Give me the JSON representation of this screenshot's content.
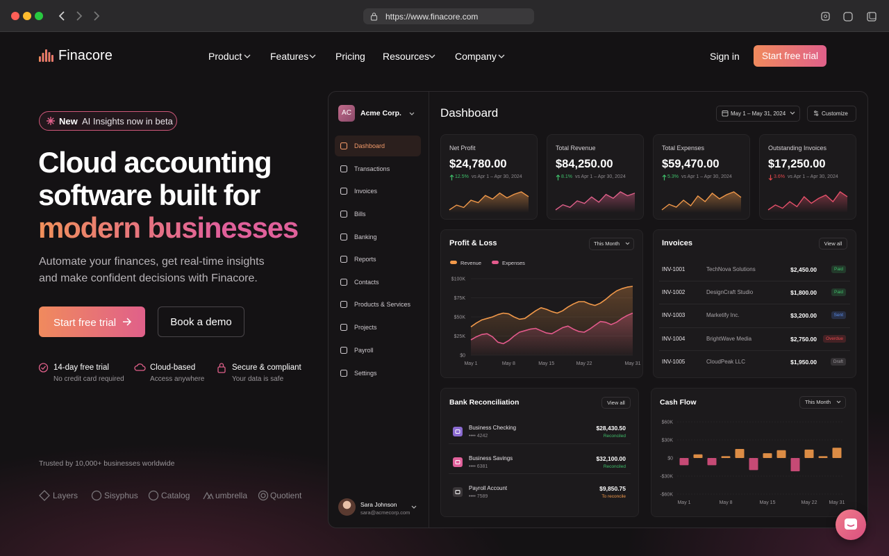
{
  "browser": {
    "url": "https://www.finacore.com"
  },
  "nav": {
    "brand": "Finacore",
    "links": [
      "Product",
      "Features",
      "Pricing",
      "Resources",
      "Company"
    ],
    "sign_in": "Sign in",
    "cta": "Start free trial"
  },
  "hero": {
    "badge": {
      "tag": "New",
      "text": "AI Insights now in beta"
    },
    "title": [
      "Cloud accounting",
      "software built for"
    ],
    "highlight": "modern businesses",
    "subtitle": "Automate your finances, get real-time insights and make confident decisions with Finacore.",
    "primary_cta": "Start free trial",
    "secondary_cta": "Book a demo",
    "features": [
      {
        "title": "14-day free trial",
        "note": "No credit card required"
      },
      {
        "title": "Cloud-based",
        "note": "Access anywhere"
      },
      {
        "title": "Secure & compliant",
        "note": "Your data is safe"
      }
    ],
    "trusted": "Trusted by 10,000+ businesses worldwide",
    "logos": [
      "Layers",
      "Sisyphus",
      "Catalog",
      "umbrella",
      "Quotient"
    ]
  },
  "app": {
    "company_initials": "AC",
    "company": "Acme Corp.",
    "menu": [
      "Dashboard",
      "Transactions",
      "Invoices",
      "Bills",
      "Banking",
      "Reports",
      "Contacts",
      "Products & Services",
      "Projects",
      "Payroll",
      "Settings"
    ],
    "user": {
      "name": "Sara Johnson",
      "email": "sara@acmecorp.com"
    },
    "title": "Dashboard",
    "date_range": "May 1 – May 31, 2024",
    "customize": "Customize",
    "kpis": [
      {
        "label": "Net Profit",
        "value": "$24,780.00",
        "change": "12.5%",
        "direction": "up",
        "period": "vs Apr 1 – Apr 30, 2024",
        "color": "#f2994a",
        "trend": [
          10,
          14,
          12,
          18,
          16,
          22,
          19,
          24,
          20,
          23,
          25,
          21
        ]
      },
      {
        "label": "Total Revenue",
        "value": "$84,250.00",
        "change": "8.1%",
        "direction": "up",
        "period": "vs Apr 1 – Apr 30, 2024",
        "color": "#e0608a",
        "trend": [
          8,
          12,
          10,
          15,
          13,
          18,
          14,
          20,
          17,
          22,
          19,
          21
        ]
      },
      {
        "label": "Total Expenses",
        "value": "$59,470.00",
        "change": "5.3%",
        "direction": "up",
        "period": "vs Apr 1 – Apr 30, 2024",
        "color": "#f2994a",
        "trend": [
          9,
          13,
          11,
          16,
          12,
          19,
          15,
          21,
          17,
          20,
          22,
          18
        ]
      },
      {
        "label": "Outstanding Invoices",
        "value": "$17,250.00",
        "change": "3.6%",
        "direction": "down",
        "period": "vs Apr 1 – Apr 30, 2024",
        "color": "#e5506a",
        "trend": [
          7,
          10,
          8,
          12,
          9,
          15,
          11,
          14,
          16,
          12,
          18,
          15
        ]
      }
    ],
    "profit_loss": {
      "type": "line",
      "title": "Profit & Loss",
      "period": "This Month",
      "categories": [
        "May 1",
        null,
        null,
        null,
        null,
        null,
        null,
        "May 8",
        null,
        null,
        null,
        null,
        null,
        null,
        "May 15",
        null,
        null,
        null,
        null,
        null,
        null,
        "May 22",
        null,
        null,
        null,
        null,
        null,
        null,
        null,
        null,
        "May 31"
      ],
      "series": [
        {
          "name": "Revenue",
          "color": "#f2994a",
          "values": [
            37000,
            42000,
            46000,
            48000,
            50000,
            53000,
            55000,
            54000,
            50000,
            47000,
            48000,
            53000,
            58000,
            62000,
            60000,
            57000,
            55000,
            58000,
            63000,
            67000,
            70000,
            70000,
            67000,
            65000,
            68000,
            73000,
            79000,
            84000,
            87000,
            89000,
            90000
          ]
        },
        {
          "name": "Expenses",
          "color": "#e45a8c",
          "values": [
            20000,
            24000,
            27000,
            28000,
            24000,
            17000,
            15000,
            19000,
            25000,
            30000,
            32000,
            34000,
            35000,
            32000,
            29000,
            28000,
            32000,
            36000,
            38000,
            34000,
            31000,
            30000,
            34000,
            39000,
            44000,
            43000,
            40000,
            43000,
            48000,
            52000,
            55000
          ]
        }
      ],
      "ylim": [
        0,
        100000
      ],
      "yticks": [
        {
          "value": 0,
          "label": "$0"
        },
        {
          "value": 25000,
          "label": "$25K"
        },
        {
          "value": 50000,
          "label": "$50K"
        },
        {
          "value": 75000,
          "label": "$75K"
        },
        {
          "value": 100000,
          "label": "$100K"
        }
      ],
      "grid": true
    },
    "invoices": {
      "title": "Invoices",
      "view_all": "View all",
      "rows": [
        {
          "id": "INV-1001",
          "client": "TechNova Solutions",
          "amount": "$2,450.00",
          "status": "Paid",
          "status_color": "#3fbf6a"
        },
        {
          "id": "INV-1002",
          "client": "DesignCraft Studio",
          "amount": "$1,800.00",
          "status": "Paid",
          "status_color": "#3fbf6a"
        },
        {
          "id": "INV-1003",
          "client": "Marketify Inc.",
          "amount": "$3,200.00",
          "status": "Sent",
          "status_color": "#5a8dee"
        },
        {
          "id": "INV-1004",
          "client": "BrightWave Media",
          "amount": "$2,750.00",
          "status": "Overdue",
          "status_color": "#e5484d"
        },
        {
          "id": "INV-1005",
          "client": "CloudPeak LLC",
          "amount": "$1,950.00",
          "status": "Draft",
          "status_color": "#9a969a"
        }
      ]
    },
    "bank": {
      "title": "Bank Reconciliation",
      "view_all": "View all",
      "accounts": [
        {
          "name": "Business Checking",
          "number": "•••• 4242",
          "balance": "$28,430.50",
          "status": "Reconciled",
          "status_color": "#3fbf6a",
          "icon_color": "#8a6ad0"
        },
        {
          "name": "Business Savings",
          "number": "•••• 6381",
          "balance": "$32,100.00",
          "status": "Reconciled",
          "status_color": "#3fbf6a",
          "icon_color": "#e0609a"
        },
        {
          "name": "Payroll Account",
          "number": "•••• 7589",
          "balance": "$9,850.75",
          "status": "To reconcile",
          "status_color": "#f2994a",
          "icon_color": "#3a3638"
        }
      ]
    },
    "cash_flow": {
      "type": "bar",
      "title": "Cash Flow",
      "period": "This Month",
      "categories": [
        "May 1",
        null,
        null,
        "May 8",
        null,
        null,
        "May 15",
        null,
        null,
        "May 22",
        null,
        "May 31"
      ],
      "values": [
        -12000,
        6000,
        -12000,
        3000,
        15000,
        -20000,
        8000,
        13000,
        -22000,
        14000,
        3000,
        17000
      ],
      "positive_color": "#f2994a",
      "negative_color": "#d9507f",
      "ylim": [
        -60000,
        60000
      ],
      "yticks": [
        {
          "value": -60000,
          "label": "-$60K"
        },
        {
          "value": -30000,
          "label": "-$30K"
        },
        {
          "value": 0,
          "label": "$0"
        },
        {
          "value": 30000,
          "label": "$30K"
        },
        {
          "value": 60000,
          "label": "$60K"
        }
      ],
      "grid": true
    }
  }
}
